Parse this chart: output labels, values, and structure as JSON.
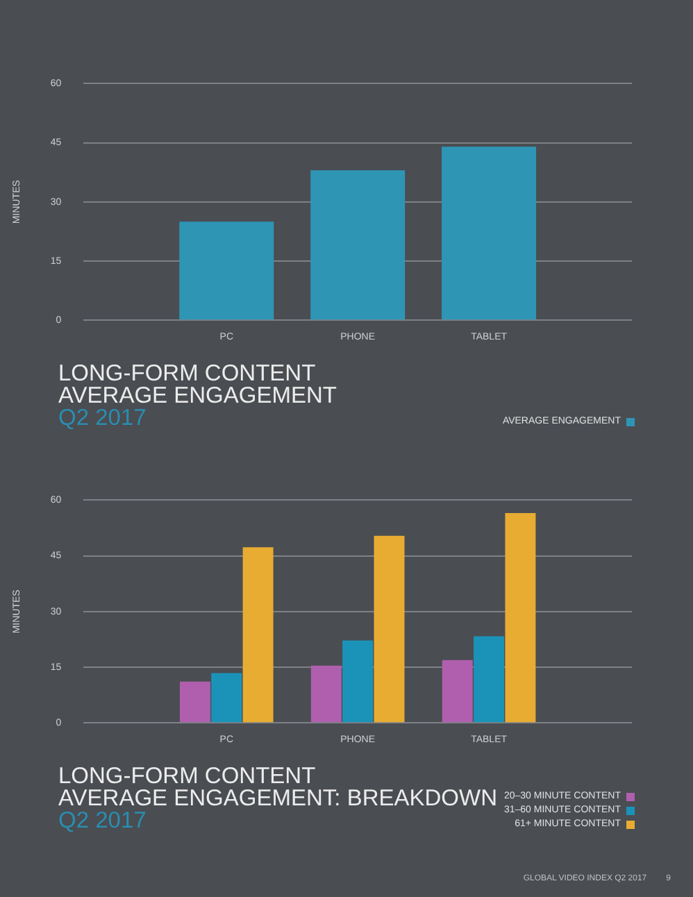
{
  "chart_data": [
    {
      "type": "bar",
      "title": "LONG-FORM CONTENT\nAVERAGE ENGAGEMENT",
      "subtitle": "Q2 2017",
      "ylabel": "MINUTES",
      "categories": [
        "PC",
        "PHONE",
        "TABLET"
      ],
      "series": [
        {
          "name": "AVERAGE ENGAGEMENT",
          "color": "#2f95b5",
          "values": [
            25,
            38,
            44
          ]
        }
      ],
      "ylim": [
        0,
        60
      ],
      "yticks": [
        0,
        15,
        30,
        45,
        60
      ],
      "grid": "y",
      "legend": "bottom right"
    },
    {
      "type": "bar",
      "title": "LONG-FORM CONTENT\nAVERAGE ENGAGEMENT: BREAKDOWN",
      "subtitle": "Q2 2017",
      "ylabel": "MINUTES",
      "categories": [
        "PC",
        "PHONE",
        "TABLET"
      ],
      "series": [
        {
          "name": "20–30 MINUTE CONTENT",
          "color": "#b05fae",
          "values": [
            11.1,
            15.4,
            16.9
          ]
        },
        {
          "name": "31–60 MINUTE CONTENT",
          "color": "#1b93b9",
          "values": [
            13.4,
            22.2,
            23.3
          ]
        },
        {
          "name": "61+ MINUTE CONTENT",
          "color": "#e8ac32",
          "values": [
            47.3,
            50.4,
            56.5
          ]
        }
      ],
      "ylim": [
        0,
        60
      ],
      "yticks": [
        0,
        15,
        30,
        45,
        60
      ],
      "grid": "y",
      "legend": "bottom right",
      "annotations": [
        "GLOBAL VIDEO INDEX Q2 2017",
        "9"
      ]
    }
  ]
}
